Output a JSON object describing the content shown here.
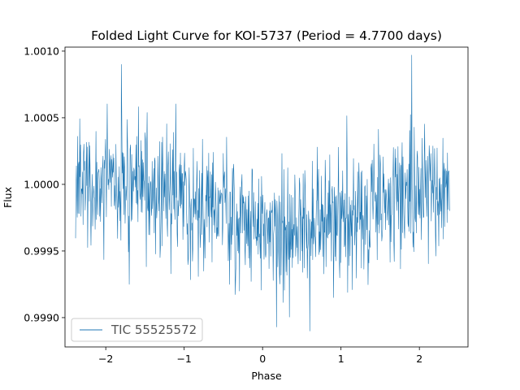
{
  "chart_data": {
    "type": "line",
    "title": "Folded Light Curve for KOI-5737 (Period = 4.7700 days)",
    "xlabel": "Phase",
    "ylabel": "Flux",
    "xlim": [
      -2.52,
      2.62
    ],
    "ylim": [
      0.99878,
      1.00103
    ],
    "xticks": [
      -2,
      -1,
      0,
      1,
      2
    ],
    "xtick_labels": [
      "−2",
      "−1",
      "0",
      "1",
      "2"
    ],
    "yticks": [
      0.999,
      0.9995,
      1.0,
      1.0005,
      1.001
    ],
    "ytick_labels": [
      "0.9990",
      "0.9995",
      "1.0000",
      "1.0005",
      "1.0010"
    ],
    "grid": false,
    "legend": {
      "location": "lower-left",
      "entries": [
        "TIC 55525572"
      ]
    },
    "series": [
      {
        "name": "TIC 55525572",
        "color": "#1f77b4",
        "x_range": [
          -2.385,
          2.385
        ],
        "n_points": 900,
        "baseline": 1.0,
        "transit_depth": 0.00033,
        "transit_center": 0.35,
        "transit_width": 1.2,
        "noise_sd": 0.00024,
        "notable_extremes": [
          {
            "x": -1.8,
            "y": 1.0009
          },
          {
            "x": 1.9,
            "y": 1.00097
          },
          {
            "x": -1.7,
            "y": 0.99925
          },
          {
            "x": 0.6,
            "y": 0.9989
          },
          {
            "x": 0.18,
            "y": 0.99893
          }
        ]
      }
    ]
  }
}
